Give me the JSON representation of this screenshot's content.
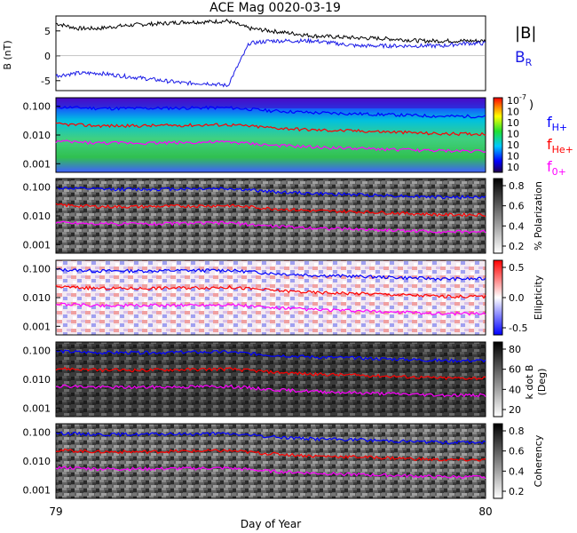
{
  "title": "ACE Mag 0020-03-19",
  "xlabel": "Day of Year",
  "x_ticks": [
    "79",
    "80"
  ],
  "colors": {
    "B_total": "#000000",
    "B_R": "#1a1ae6",
    "f_H": "#0000ff",
    "f_He": "#ff0000",
    "f_O": "#ff00ff"
  },
  "panel_mag": {
    "ylabel": "B\n(nT)",
    "yticks": [
      "5",
      "0",
      "-5"
    ],
    "legend_total": "|B|",
    "legend_r": "B",
    "legend_r_sub": "R"
  },
  "panel_spec": {
    "yticks": [
      "0.100",
      "0.010",
      "0.001"
    ],
    "cbar_ticks": [
      "10",
      "10",
      "10",
      "10",
      "10",
      "10",
      "10"
    ],
    "cbar_exp": "-7",
    "cbar_label": ")",
    "legend": [
      {
        "main": "f",
        "sub": "H+"
      },
      {
        "main": "f",
        "sub": "He+"
      },
      {
        "main": "f",
        "sub": "0+"
      }
    ]
  },
  "panel_pol": {
    "yticks": [
      "0.100",
      "0.010",
      "0.001"
    ],
    "cbar_ticks": [
      "0.8",
      "0.6",
      "0.4",
      "0.2"
    ],
    "cbar_label": "% Polarization"
  },
  "panel_ell": {
    "yticks": [
      "0.100",
      "0.010",
      "0.001"
    ],
    "cbar_ticks": [
      "0.5",
      "0.0",
      "-0.5"
    ],
    "cbar_label": "Ellipticity"
  },
  "panel_kdb": {
    "yticks": [
      "0.100",
      "0.010",
      "0.001"
    ],
    "cbar_ticks": [
      "80",
      "60",
      "40",
      "20"
    ],
    "cbar_label": "k dot B",
    "cbar_label2": "(Deg)"
  },
  "panel_coh": {
    "yticks": [
      "0.100",
      "0.010",
      "0.001"
    ],
    "cbar_ticks": [
      "0.8",
      "0.6",
      "0.4",
      "0.2"
    ],
    "cbar_label": "Coherency"
  },
  "chart_data": {
    "type": "line",
    "title": "ACE Mag 0020-03-19",
    "xlabel": "Day of Year",
    "xlim": [
      79,
      80
    ],
    "mag_panel": {
      "ylim": [
        -7,
        8
      ],
      "series": [
        {
          "name": "|B|",
          "x": [
            79.0,
            79.05,
            79.1,
            79.15,
            79.2,
            79.25,
            79.3,
            79.35,
            79.4,
            79.45,
            79.5,
            79.55,
            79.6,
            79.65,
            79.7,
            79.75,
            79.8,
            79.85,
            79.9,
            79.95,
            80.0
          ],
          "values": [
            6.5,
            5.5,
            5.5,
            6.0,
            6.3,
            6.5,
            6.8,
            6.8,
            7.0,
            5.5,
            5.0,
            4.5,
            4.0,
            3.8,
            3.6,
            3.5,
            3.3,
            3.0,
            3.0,
            3.0,
            3.0
          ]
        },
        {
          "name": "B_R",
          "x": [
            79.0,
            79.05,
            79.1,
            79.15,
            79.2,
            79.25,
            79.3,
            79.35,
            79.4,
            79.45,
            79.5,
            79.55,
            79.6,
            79.65,
            79.7,
            79.75,
            79.8,
            79.85,
            79.9,
            79.95,
            80.0
          ],
          "values": [
            -4.0,
            -3.5,
            -3.5,
            -4.0,
            -4.5,
            -5.0,
            -5.5,
            -5.5,
            -6.0,
            2.5,
            3.0,
            3.0,
            3.0,
            2.5,
            2.0,
            2.0,
            2.0,
            2.0,
            2.0,
            2.5,
            2.5
          ]
        }
      ]
    },
    "gyrofrequency_lines": {
      "ylim_log10": [
        -3.3,
        -0.7
      ],
      "x": [
        79.0,
        79.1,
        79.2,
        79.3,
        79.4,
        79.5,
        79.6,
        79.7,
        79.8,
        79.9,
        80.0
      ],
      "series": [
        {
          "name": "f_H+",
          "values": [
            0.095,
            0.085,
            0.085,
            0.088,
            0.09,
            0.07,
            0.06,
            0.055,
            0.05,
            0.045,
            0.045
          ]
        },
        {
          "name": "f_He+",
          "values": [
            0.024,
            0.021,
            0.021,
            0.022,
            0.023,
            0.018,
            0.015,
            0.014,
            0.0125,
            0.011,
            0.011
          ]
        },
        {
          "name": "f_0+",
          "values": [
            0.006,
            0.0053,
            0.0053,
            0.0055,
            0.0057,
            0.0044,
            0.0038,
            0.0034,
            0.0031,
            0.0028,
            0.0028
          ]
        }
      ]
    }
  }
}
